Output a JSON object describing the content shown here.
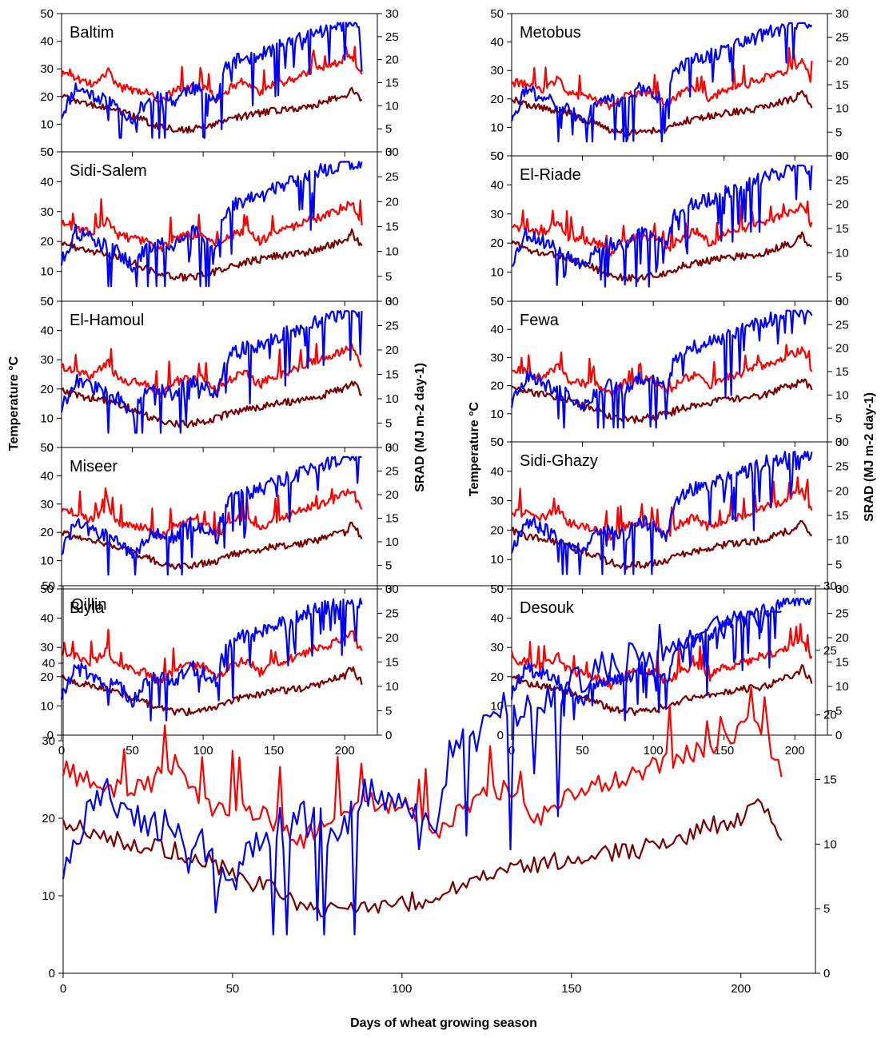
{
  "figure": {
    "left_ylabel": "Temperature °C",
    "right_ylabel": "SRAD (MJ m-2 day-1)",
    "xlabel": "Days of wheat growing season"
  },
  "chart_data": {
    "type": "line",
    "x_range": [
      0,
      212
    ],
    "left_axis": {
      "label": "Temperature °C",
      "ylim": [
        0,
        50
      ],
      "ticks": [
        0,
        10,
        20,
        30,
        40,
        50
      ]
    },
    "right_axis": {
      "label": "SRAD (MJ m-2 day-1)",
      "ylim": [
        0,
        30
      ],
      "ticks": [
        0,
        5,
        10,
        15,
        20,
        25,
        30
      ]
    },
    "x_ticks": [
      0,
      50,
      100,
      150,
      200
    ],
    "series_colors": {
      "srad": "#0000ff",
      "tmax": "#ff0000",
      "tmin": "#7a0000"
    },
    "series_axes": {
      "srad": "right",
      "tmax": "left",
      "tmin": "left"
    },
    "knots": {
      "srad": [
        [
          0,
          8
        ],
        [
          10,
          14
        ],
        [
          25,
          12
        ],
        [
          40,
          10
        ],
        [
          50,
          7
        ],
        [
          60,
          11
        ],
        [
          70,
          12
        ],
        [
          80,
          11
        ],
        [
          90,
          14
        ],
        [
          100,
          13
        ],
        [
          110,
          11
        ],
        [
          115,
          18
        ],
        [
          125,
          20
        ],
        [
          140,
          21
        ],
        [
          155,
          23
        ],
        [
          165,
          24
        ],
        [
          180,
          26
        ],
        [
          190,
          26.5
        ],
        [
          200,
          28
        ],
        [
          212,
          27.5
        ]
      ],
      "tmax": [
        [
          0,
          26
        ],
        [
          10,
          25
        ],
        [
          20,
          23
        ],
        [
          33,
          27
        ],
        [
          40,
          22
        ],
        [
          50,
          21
        ],
        [
          60,
          20
        ],
        [
          70,
          17
        ],
        [
          80,
          21
        ],
        [
          90,
          22
        ],
        [
          100,
          22
        ],
        [
          110,
          18
        ],
        [
          120,
          22
        ],
        [
          130,
          24
        ],
        [
          140,
          20
        ],
        [
          150,
          23
        ],
        [
          160,
          24
        ],
        [
          175,
          27
        ],
        [
          190,
          29
        ],
        [
          205,
          33
        ],
        [
          212,
          26
        ]
      ],
      "tmin": [
        [
          0,
          20
        ],
        [
          10,
          18
        ],
        [
          20,
          17
        ],
        [
          30,
          16
        ],
        [
          40,
          15
        ],
        [
          50,
          13
        ],
        [
          60,
          11
        ],
        [
          70,
          9
        ],
        [
          80,
          8
        ],
        [
          90,
          8
        ],
        [
          100,
          9
        ],
        [
          110,
          10
        ],
        [
          120,
          12
        ],
        [
          130,
          13
        ],
        [
          140,
          14
        ],
        [
          150,
          15
        ],
        [
          160,
          15.5
        ],
        [
          170,
          16
        ],
        [
          180,
          17
        ],
        [
          190,
          19
        ],
        [
          200,
          20
        ],
        [
          205,
          23
        ],
        [
          212,
          18
        ]
      ]
    },
    "panels": [
      {
        "name": "Baltim",
        "scale_srad": 1.0,
        "scale_tmax": 1.07,
        "scale_tmin": 1.0
      },
      {
        "name": "Sidi-Salem",
        "scale_srad": 1.0,
        "scale_tmax": 1.0,
        "scale_tmin": 1.0
      },
      {
        "name": "El-Hamoul",
        "scale_srad": 1.0,
        "scale_tmax": 1.07,
        "scale_tmin": 1.0
      },
      {
        "name": "Miseer",
        "scale_srad": 1.0,
        "scale_tmax": 1.07,
        "scale_tmin": 1.0
      },
      {
        "name": "Biyla",
        "scale_srad": 1.0,
        "scale_tmax": 1.07,
        "scale_tmin": 1.0
      },
      {
        "name": "Metobus",
        "scale_srad": 1.0,
        "scale_tmax": 1.0,
        "scale_tmin": 1.0
      },
      {
        "name": "El-Riade",
        "scale_srad": 1.0,
        "scale_tmax": 1.0,
        "scale_tmin": 1.0
      },
      {
        "name": "Fewa",
        "scale_srad": 1.0,
        "scale_tmax": 1.0,
        "scale_tmin": 1.0
      },
      {
        "name": "Sidi-Ghazy",
        "scale_srad": 1.0,
        "scale_tmax": 1.02,
        "scale_tmin": 1.0
      },
      {
        "name": "Desouk",
        "scale_srad": 1.0,
        "scale_tmax": 1.0,
        "scale_tmin": 1.0
      },
      {
        "name": "Qillin",
        "scale_srad": 1.0,
        "scale_tmax": 1.0,
        "scale_tmin": 1.0
      }
    ]
  }
}
